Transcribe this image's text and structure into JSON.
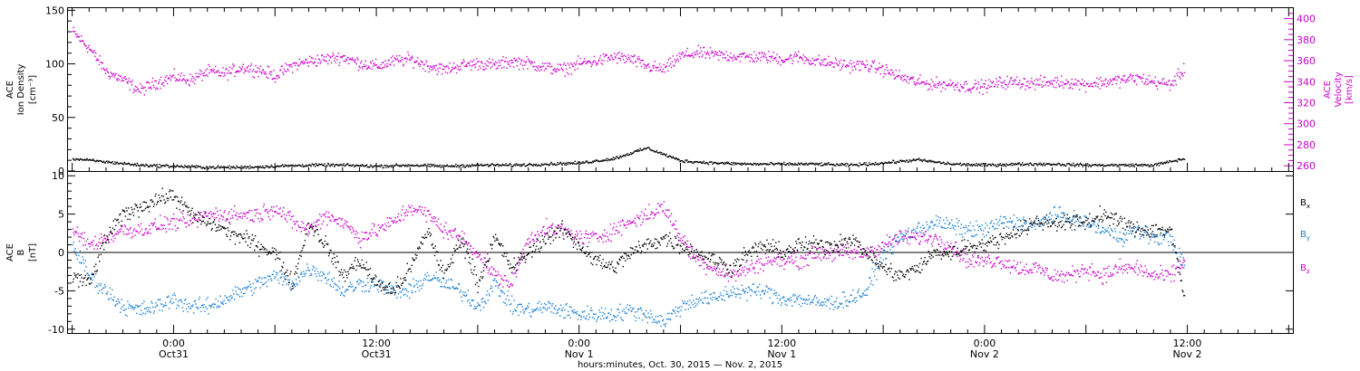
{
  "xaxis": {
    "caption": "hours:minutes, Oct. 30, 2015 — Nov.  2, 2015",
    "ticks": [
      {
        "t": 6,
        "time": "0:00",
        "date": "Oct31"
      },
      {
        "t": 18,
        "time": "12:00",
        "date": "Oct31"
      },
      {
        "t": 30,
        "time": "0:00",
        "date": "Nov 1"
      },
      {
        "t": 42,
        "time": "12:00",
        "date": "Nov 1"
      },
      {
        "t": 54,
        "time": "0:00",
        "date": "Nov 2"
      },
      {
        "t": 66,
        "time": "12:00",
        "date": "Nov 2"
      }
    ],
    "range_hours": [
      -0.25,
      72.25
    ],
    "minor_step_hours": 1
  },
  "panels": {
    "top": {
      "left_label": [
        "ACE",
        "Ion Density",
        "[cm⁻³]"
      ],
      "right_label": [
        "ACE",
        "Velocity",
        "[km/s]"
      ],
      "left_ticks": [
        "0",
        "50",
        "100",
        "150"
      ],
      "right_ticks": [
        "260",
        "280",
        "300",
        "320",
        "340",
        "360",
        "380",
        "400"
      ],
      "left_range": [
        0,
        152
      ],
      "right_range": [
        255,
        410
      ],
      "right_color": "#cc00cc"
    },
    "bottom": {
      "left_label": [
        "ACE",
        "B",
        "[nT]"
      ],
      "left_ticks": [
        "-10",
        "-5",
        "0",
        "5",
        "10"
      ],
      "left_range": [
        -10.5,
        10.5
      ],
      "legend": [
        {
          "label": "B",
          "sub": "x",
          "color": "#000000"
        },
        {
          "label": "B",
          "sub": "y",
          "color": "#1a7fd4"
        },
        {
          "label": "B",
          "sub": "z",
          "color": "#cc00cc"
        }
      ]
    }
  },
  "chart_data": [
    {
      "type": "scatter",
      "panel": "top",
      "axis": "left",
      "ylabel": "ACE Ion Density [cm⁻³]",
      "ylim": [
        0,
        152
      ],
      "series": [
        {
          "color": "#000000",
          "x_hours": [
            0,
            2,
            4,
            6,
            8,
            10,
            12,
            14,
            16,
            18,
            20,
            22,
            24,
            26,
            28,
            30,
            32,
            34,
            36,
            38,
            40,
            42,
            44,
            46,
            48,
            50,
            52,
            54,
            56,
            58,
            60,
            62,
            64,
            65.8
          ],
          "y": [
            12,
            9,
            6,
            5,
            4,
            4,
            5,
            6,
            6,
            5,
            6,
            5,
            6,
            6,
            7,
            8,
            12,
            22,
            10,
            8,
            7,
            7,
            7,
            6,
            8,
            11,
            7,
            6,
            7,
            7,
            6,
            6,
            6,
            12
          ]
        }
      ]
    },
    {
      "type": "scatter",
      "panel": "top",
      "axis": "right",
      "ylabel": "ACE Velocity [km/s]",
      "ylim": [
        255,
        410
      ],
      "series": [
        {
          "color": "#cc00cc",
          "x_hours": [
            0,
            1,
            2,
            3,
            4,
            5,
            6,
            7,
            8,
            9,
            10,
            11,
            12,
            13,
            14,
            15,
            16,
            17,
            18,
            19,
            20,
            21,
            22,
            23,
            24,
            25,
            26,
            27,
            28,
            29,
            30,
            31,
            32,
            33,
            34,
            35,
            36,
            37,
            38,
            39,
            40,
            41,
            42,
            43,
            44,
            45,
            46,
            47,
            48,
            49,
            50,
            51,
            52,
            53,
            54,
            55,
            56,
            57,
            58,
            59,
            60,
            61,
            62,
            63,
            64,
            65,
            65.8
          ],
          "y": [
            388,
            372,
            350,
            342,
            332,
            340,
            345,
            342,
            350,
            348,
            354,
            352,
            346,
            356,
            360,
            362,
            364,
            358,
            355,
            360,
            362,
            356,
            352,
            356,
            358,
            356,
            360,
            358,
            354,
            352,
            358,
            360,
            364,
            362,
            355,
            352,
            365,
            368,
            366,
            365,
            364,
            364,
            362,
            364,
            360,
            358,
            356,
            356,
            352,
            345,
            340,
            338,
            338,
            336,
            336,
            340,
            340,
            339,
            340,
            340,
            338,
            340,
            342,
            344,
            340,
            338,
            352
          ]
        }
      ]
    },
    {
      "type": "scatter",
      "panel": "bottom",
      "ylabel": "ACE B [nT]",
      "ylim": [
        -10.5,
        10.5
      ],
      "series": [
        {
          "name": "Bx",
          "color": "#000000",
          "x_hours": [
            0,
            1,
            2,
            3,
            4,
            5,
            6,
            7,
            8,
            9,
            10,
            11,
            12,
            13,
            14,
            15,
            16,
            17,
            18,
            19,
            20,
            21,
            22,
            23,
            24,
            25,
            26,
            27,
            28,
            29,
            30,
            31,
            32,
            33,
            34,
            35,
            36,
            37,
            38,
            39,
            40,
            41,
            42,
            43,
            44,
            45,
            46,
            47,
            48,
            49,
            50,
            51,
            52,
            53,
            54,
            55,
            56,
            57,
            58,
            59,
            60,
            61,
            62,
            63,
            64,
            65,
            65.8
          ],
          "y": [
            -3,
            -4,
            2,
            5,
            6,
            7,
            7.5,
            5,
            4,
            3,
            2,
            1,
            0,
            -4,
            4,
            1,
            -3,
            -1,
            -4,
            -5,
            -2,
            3,
            -3,
            2,
            -4,
            2,
            -2,
            0,
            2,
            3,
            1,
            -1,
            -2,
            0,
            1,
            2,
            1,
            0,
            -1,
            -2,
            0,
            1,
            0,
            1,
            1,
            1,
            2,
            0,
            -2,
            -3,
            -2,
            0,
            0,
            1,
            1,
            2,
            3,
            4,
            4,
            4,
            4,
            5,
            4,
            3,
            3,
            3,
            -6
          ]
        },
        {
          "name": "By",
          "color": "#1a7fd4",
          "x_hours": [
            0,
            1,
            2,
            3,
            4,
            5,
            6,
            7,
            8,
            9,
            10,
            11,
            12,
            13,
            14,
            15,
            16,
            17,
            18,
            19,
            20,
            21,
            22,
            23,
            24,
            25,
            26,
            27,
            28,
            29,
            30,
            31,
            32,
            33,
            34,
            35,
            36,
            37,
            38,
            39,
            40,
            41,
            42,
            43,
            44,
            45,
            46,
            47,
            48,
            49,
            50,
            51,
            52,
            53,
            54,
            55,
            56,
            57,
            58,
            59,
            60,
            61,
            62,
            63,
            64,
            65,
            65.8
          ],
          "y": [
            1,
            -3,
            -5,
            -7,
            -7.5,
            -7,
            -6,
            -7,
            -7,
            -6,
            -5,
            -4,
            -3,
            -4,
            -2,
            -3,
            -5,
            -4,
            -4,
            -5,
            -5,
            -3,
            -4,
            -5,
            -7,
            -4,
            -7,
            -7.5,
            -7,
            -7.5,
            -8,
            -8,
            -8,
            -7.5,
            -8,
            -9,
            -7,
            -6,
            -6,
            -5,
            -5,
            -5,
            -6,
            -6,
            -6.5,
            -6.5,
            -6,
            -5,
            0,
            2,
            3,
            4,
            3.5,
            3,
            3,
            4,
            4,
            3.5,
            5,
            4.5,
            4,
            3,
            2,
            3,
            2,
            2,
            -2
          ]
        },
        {
          "name": "Bz",
          "color": "#cc00cc",
          "x_hours": [
            0,
            1,
            2,
            3,
            4,
            5,
            6,
            7,
            8,
            9,
            10,
            11,
            12,
            13,
            14,
            15,
            16,
            17,
            18,
            19,
            20,
            21,
            22,
            23,
            24,
            25,
            26,
            27,
            28,
            29,
            30,
            31,
            32,
            33,
            34,
            35,
            36,
            37,
            38,
            39,
            40,
            41,
            42,
            43,
            44,
            45,
            46,
            47,
            48,
            49,
            50,
            51,
            52,
            53,
            54,
            55,
            56,
            57,
            58,
            59,
            60,
            61,
            62,
            63,
            64,
            65,
            65.8
          ],
          "y": [
            3,
            1,
            2,
            3,
            3,
            3.5,
            4,
            4,
            5,
            5,
            5,
            5,
            6,
            4,
            3,
            5,
            4,
            2,
            3,
            4,
            6,
            5,
            3,
            2,
            0,
            -3,
            -4,
            2,
            3,
            3,
            2,
            2,
            3,
            4,
            5,
            6,
            2,
            -1,
            -2,
            -3,
            -2,
            -1,
            -1,
            -1,
            0,
            0,
            0,
            0,
            1,
            2,
            2,
            2,
            1,
            -1,
            -1,
            -1,
            -2,
            -2,
            -3,
            -3,
            -2,
            -3,
            -2,
            -2,
            -3,
            -3,
            -1
          ]
        }
      ]
    }
  ]
}
